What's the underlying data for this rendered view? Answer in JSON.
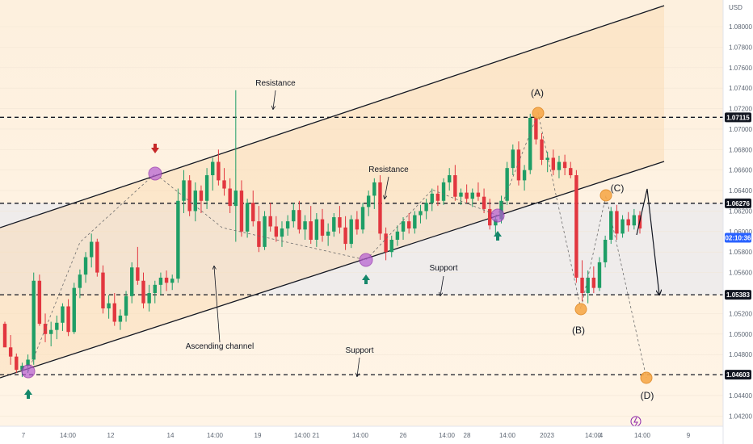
{
  "chart_data": {
    "type": "candlestick",
    "currency": "USD",
    "ylim": [
      1.041,
      1.0826
    ],
    "y_ticks": [
      "1.08000",
      "1.07800",
      "1.07600",
      "1.07400",
      "1.07200",
      "1.07000",
      "1.06800",
      "1.06600",
      "1.06400",
      "1.06200",
      "1.06000",
      "1.05800",
      "1.05600",
      "1.05200",
      "1.05000",
      "1.04800",
      "1.04400",
      "1.04200"
    ],
    "x_ticks": [
      "7",
      "14:00",
      "12",
      "14",
      "14:00",
      "19",
      "14:00",
      "21",
      "14:00",
      "26",
      "14:00",
      "28",
      "14:00",
      "2023",
      "14:00",
      "4",
      "14:00",
      "9"
    ],
    "price_badges": [
      {
        "label": "1.07115",
        "value": 1.07115,
        "style": "level"
      },
      {
        "label": "1.06276",
        "value": 1.06276,
        "style": "level"
      },
      {
        "label": "02:10:36",
        "value": 1.0594,
        "style": "current"
      },
      {
        "label": "1.05383",
        "value": 1.05383,
        "style": "level"
      },
      {
        "label": "1.04603",
        "value": 1.04603,
        "style": "level"
      }
    ],
    "levels": [
      1.07115,
      1.06276,
      1.05383,
      1.04603
    ],
    "annotations": {
      "resistance_upper": "Resistance",
      "resistance_mid": "Resistance",
      "support_mid": "Support",
      "support_lower": "Support",
      "channel": "Ascending channel",
      "wave_a": "(A)",
      "wave_b": "(B)",
      "wave_c": "(C)",
      "wave_d": "(D)"
    },
    "candles": [
      [
        1.051,
        1.0512,
        1.0488,
        1.0487
      ],
      [
        1.0487,
        1.0499,
        1.047,
        1.0478
      ],
      [
        1.0478,
        1.0481,
        1.0462,
        1.0465
      ],
      [
        1.0465,
        1.0472,
        1.0458,
        1.0469
      ],
      [
        1.0469,
        1.048,
        1.0462,
        1.0475
      ],
      [
        1.0475,
        1.056,
        1.047,
        1.0552
      ],
      [
        1.0552,
        1.0558,
        1.0508,
        1.051
      ],
      [
        1.051,
        1.052,
        1.0492,
        1.05
      ],
      [
        1.05,
        1.0512,
        1.0488,
        1.0504
      ],
      [
        1.0504,
        1.0518,
        1.0495,
        1.0511
      ],
      [
        1.0511,
        1.053,
        1.0503,
        1.0527
      ],
      [
        1.0527,
        1.0534,
        1.0498,
        1.0502
      ],
      [
        1.0502,
        1.055,
        1.05,
        1.0545
      ],
      [
        1.0545,
        1.0563,
        1.0535,
        1.0558
      ],
      [
        1.0558,
        1.058,
        1.055,
        1.0575
      ],
      [
        1.0575,
        1.0598,
        1.0565,
        1.059
      ],
      [
        1.059,
        1.0593,
        1.0556,
        1.056
      ],
      [
        1.056,
        1.0567,
        1.052,
        1.0525
      ],
      [
        1.0525,
        1.0538,
        1.0515,
        1.053
      ],
      [
        1.053,
        1.054,
        1.0508,
        1.0512
      ],
      [
        1.0512,
        1.0524,
        1.0504,
        1.0518
      ],
      [
        1.0518,
        1.0542,
        1.0512,
        1.0537
      ],
      [
        1.0537,
        1.057,
        1.053,
        1.0565
      ],
      [
        1.0565,
        1.0585,
        1.0548,
        1.0552
      ],
      [
        1.0552,
        1.056,
        1.0525,
        1.053
      ],
      [
        1.053,
        1.0548,
        1.0522,
        1.054
      ],
      [
        1.054,
        1.0552,
        1.053,
        1.0548
      ],
      [
        1.0548,
        1.056,
        1.0538,
        1.0555
      ],
      [
        1.0555,
        1.0562,
        1.0542,
        1.055
      ],
      [
        1.055,
        1.0558,
        1.0543,
        1.0554
      ],
      [
        1.0554,
        1.0642,
        1.055,
        1.063
      ],
      [
        1.063,
        1.066,
        1.0618,
        1.065
      ],
      [
        1.065,
        1.0655,
        1.0615,
        1.062
      ],
      [
        1.062,
        1.0648,
        1.061,
        1.064
      ],
      [
        1.064,
        1.0645,
        1.0618,
        1.063
      ],
      [
        1.063,
        1.0662,
        1.0622,
        1.0655
      ],
      [
        1.0655,
        1.0672,
        1.064,
        1.0668
      ],
      [
        1.0668,
        1.068,
        1.0645,
        1.065
      ],
      [
        1.065,
        1.0662,
        1.0635,
        1.0642
      ],
      [
        1.0642,
        1.0652,
        1.0618,
        1.0625
      ],
      [
        1.0625,
        1.0738,
        1.059,
        1.064
      ],
      [
        1.064,
        1.065,
        1.0595,
        1.06
      ],
      [
        1.06,
        1.0632,
        1.0594,
        1.0628
      ],
      [
        1.0628,
        1.064,
        1.0605,
        1.061
      ],
      [
        1.061,
        1.0625,
        1.058,
        1.0585
      ],
      [
        1.0585,
        1.062,
        1.0582,
        1.0615
      ],
      [
        1.0615,
        1.0628,
        1.06,
        1.0605
      ],
      [
        1.0605,
        1.0615,
        1.059,
        1.0595
      ],
      [
        1.0595,
        1.061,
        1.0585,
        1.0603
      ],
      [
        1.0603,
        1.0616,
        1.0596,
        1.061
      ],
      [
        1.061,
        1.0628,
        1.0604,
        1.0621
      ],
      [
        1.0621,
        1.063,
        1.0598,
        1.0602
      ],
      [
        1.0602,
        1.0616,
        1.0592,
        1.061
      ],
      [
        1.061,
        1.0625,
        1.0588,
        1.0592
      ],
      [
        1.0592,
        1.0618,
        1.0585,
        1.0612
      ],
      [
        1.0612,
        1.0622,
        1.059,
        1.0596
      ],
      [
        1.0596,
        1.0608,
        1.0586,
        1.06
      ],
      [
        1.06,
        1.0618,
        1.0595,
        1.0614
      ],
      [
        1.0614,
        1.0625,
        1.0598,
        1.0604
      ],
      [
        1.0604,
        1.0615,
        1.0582,
        1.0588
      ],
      [
        1.0588,
        1.0616,
        1.0584,
        1.0612
      ],
      [
        1.0612,
        1.062,
        1.0597,
        1.0602
      ],
      [
        1.0602,
        1.0628,
        1.0598,
        1.0624
      ],
      [
        1.0624,
        1.064,
        1.0615,
        1.0635
      ],
      [
        1.0635,
        1.0652,
        1.0622,
        1.0648
      ],
      [
        1.0648,
        1.0655,
        1.0592,
        1.0598
      ],
      [
        1.0598,
        1.0604,
        1.0572,
        1.058
      ],
      [
        1.058,
        1.0596,
        1.0575,
        1.0592
      ],
      [
        1.0592,
        1.0606,
        1.0586,
        1.06
      ],
      [
        1.06,
        1.0614,
        1.0592,
        1.061
      ],
      [
        1.061,
        1.0618,
        1.0598,
        1.0603
      ],
      [
        1.0603,
        1.062,
        1.0598,
        1.0616
      ],
      [
        1.0616,
        1.0626,
        1.0608,
        1.062
      ],
      [
        1.062,
        1.0632,
        1.0612,
        1.0628
      ],
      [
        1.0628,
        1.0642,
        1.062,
        1.0637
      ],
      [
        1.0637,
        1.0645,
        1.0625,
        1.063
      ],
      [
        1.063,
        1.0652,
        1.0626,
        1.0648
      ],
      [
        1.0648,
        1.0662,
        1.064,
        1.0655
      ],
      [
        1.0655,
        1.0665,
        1.063,
        1.0634
      ],
      [
        1.0634,
        1.0642,
        1.0626,
        1.0638
      ],
      [
        1.0638,
        1.0646,
        1.0628,
        1.0632
      ],
      [
        1.0632,
        1.0642,
        1.0624,
        1.0638
      ],
      [
        1.0638,
        1.0648,
        1.063,
        1.0634
      ],
      [
        1.0634,
        1.0642,
        1.0618,
        1.0622
      ],
      [
        1.0622,
        1.0632,
        1.0602,
        1.0606
      ],
      [
        1.0606,
        1.0616,
        1.0596,
        1.0612
      ],
      [
        1.0612,
        1.0635,
        1.0608,
        1.063
      ],
      [
        1.063,
        1.0668,
        1.0626,
        1.0662
      ],
      [
        1.0662,
        1.0685,
        1.0655,
        1.068
      ],
      [
        1.068,
        1.0688,
        1.0645,
        1.065
      ],
      [
        1.065,
        1.0665,
        1.064,
        1.066
      ],
      [
        1.066,
        1.0715,
        1.0656,
        1.0711
      ],
      [
        1.0711,
        1.0712,
        1.0685,
        1.069
      ],
      [
        1.069,
        1.0696,
        1.0665,
        1.067
      ],
      [
        1.067,
        1.0678,
        1.0658,
        1.0672
      ],
      [
        1.0672,
        1.068,
        1.0655,
        1.066
      ],
      [
        1.066,
        1.0674,
        1.0652,
        1.0668
      ],
      [
        1.0668,
        1.0675,
        1.0655,
        1.0662
      ],
      [
        1.0662,
        1.0668,
        1.0652,
        1.0655
      ],
      [
        1.0655,
        1.066,
        1.055,
        1.0555
      ],
      [
        1.0555,
        1.0572,
        1.0532,
        1.054
      ],
      [
        1.054,
        1.0562,
        1.053,
        1.0555
      ],
      [
        1.0555,
        1.0566,
        1.054,
        1.0545
      ],
      [
        1.0545,
        1.0575,
        1.0542,
        1.057
      ],
      [
        1.057,
        1.0596,
        1.0565,
        1.0592
      ],
      [
        1.0592,
        1.0624,
        1.0588,
        1.062
      ],
      [
        1.062,
        1.0626,
        1.0592,
        1.0598
      ],
      [
        1.0598,
        1.0616,
        1.0594,
        1.0612
      ],
      [
        1.0612,
        1.0619,
        1.06,
        1.0606
      ],
      [
        1.0606,
        1.0622,
        1.0602,
        1.0616
      ],
      [
        1.0616,
        1.062,
        1.0598,
        1.0603
      ]
    ]
  }
}
